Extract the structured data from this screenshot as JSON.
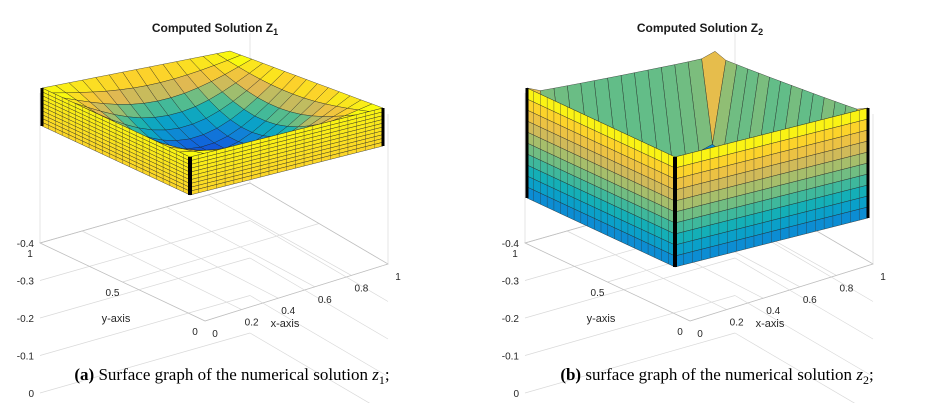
{
  "panels": [
    {
      "id": "a",
      "title_main": "Computed Solution Z",
      "title_sub": "1",
      "caption_label": "(a)",
      "caption_text": "Surface graph of the numerical solution",
      "caption_var": "z",
      "caption_sub": "1",
      "caption_end": ";"
    },
    {
      "id": "b",
      "title_main": "Computed Solution Z",
      "title_sub": "2",
      "caption_label": "(b)",
      "caption_text": "surface graph of the numerical solution",
      "caption_var": "z",
      "caption_sub": "2",
      "caption_end": ";"
    }
  ],
  "chart_data": [
    {
      "type": "surface",
      "title": "Computed Solution Z_1",
      "xlabel": "x-axis",
      "ylabel": "y-axis",
      "xticks": [
        "0",
        "0.2",
        "0.4",
        "0.6",
        "0.8",
        "1"
      ],
      "yticks": [
        "0",
        "0.5",
        "1"
      ],
      "zticks": [
        "0",
        "-0.1",
        "-0.2",
        "-0.3",
        "-0.4"
      ],
      "xlim": [
        0,
        1
      ],
      "ylim": [
        0,
        1
      ],
      "zlim": [
        -0.4,
        0
      ],
      "colormap": "parula",
      "grid": true,
      "surface_shape": "bowl",
      "boundary_value": 0,
      "min_value": -0.28
    },
    {
      "type": "surface",
      "title": "Computed Solution Z_2",
      "xlabel": "x-axis",
      "ylabel": "y-axis",
      "xticks": [
        "0",
        "0.2",
        "0.4",
        "0.6",
        "0.8",
        "1"
      ],
      "yticks": [
        "0",
        "0.5",
        "1"
      ],
      "zticks": [
        "0",
        "-0.1",
        "-0.2",
        "-0.3",
        "-0.4"
      ],
      "xlim": [
        0,
        1
      ],
      "ylim": [
        0,
        1
      ],
      "zlim": [
        -0.4,
        0
      ],
      "colormap": "parula",
      "grid": true,
      "surface_shape": "flat-bottom box",
      "boundary_value": 0,
      "min_value": -0.42
    }
  ]
}
